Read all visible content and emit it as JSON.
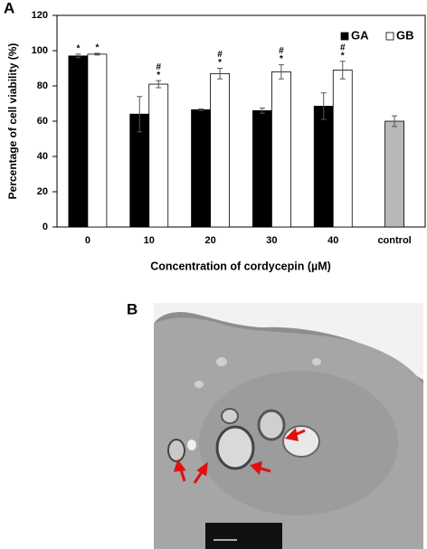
{
  "figure": {
    "panel_a_label": "A",
    "panel_b_label": "B"
  },
  "chart_data": {
    "type": "bar",
    "x_label": "Concentration of cordycepin (µM)",
    "y_label": "Percentage of cell viability (%)",
    "categories": [
      "0",
      "10",
      "20",
      "30",
      "40",
      "control"
    ],
    "series": [
      {
        "name": "GA",
        "color": "#000000",
        "values": [
          97,
          64,
          66.5,
          66,
          68.5,
          null
        ],
        "errors": [
          1,
          10,
          0.5,
          1.5,
          7.5,
          null
        ],
        "annotations": [
          [
            "*"
          ],
          null,
          null,
          null,
          null,
          null
        ]
      },
      {
        "name": "GB",
        "color": "#ffffff",
        "values": [
          98,
          81,
          87,
          88,
          89,
          null
        ],
        "errors": [
          0.5,
          2,
          3,
          4,
          5,
          null
        ],
        "annotations": [
          [
            "*"
          ],
          [
            "#",
            "*"
          ],
          [
            "#",
            "*"
          ],
          [
            "#",
            "*"
          ],
          [
            "#",
            "*"
          ],
          null
        ]
      },
      {
        "color": "#b8b8b8",
        "values": [
          null,
          null,
          null,
          null,
          null,
          60
        ],
        "errors": [
          null,
          null,
          null,
          null,
          null,
          3
        ]
      }
    ],
    "ylim": [
      0,
      120
    ],
    "yticks": [
      0,
      20,
      40,
      60,
      80,
      100,
      120
    ],
    "legend": "top-right",
    "grid": false
  }
}
